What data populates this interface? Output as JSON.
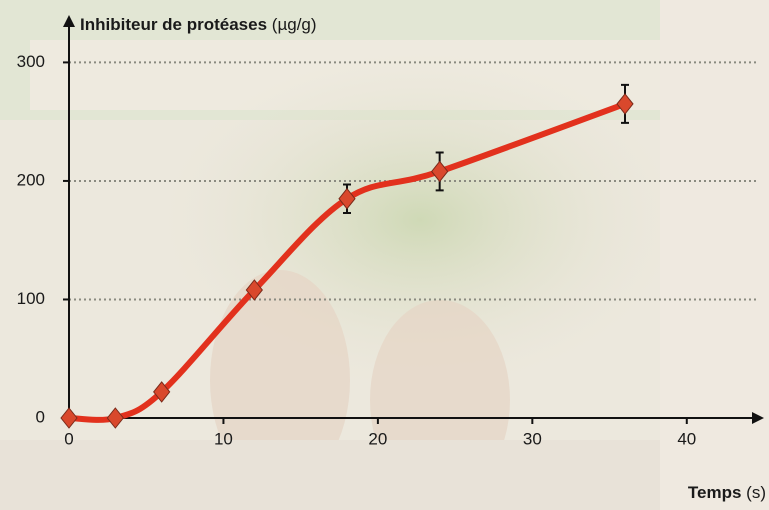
{
  "chart_data": {
    "type": "line",
    "ylabel": "Inhibiteur de protéases",
    "yunit": "(µg/g)",
    "xlabel": "Temps",
    "xunit": "(s)",
    "series": [
      {
        "name": "Inhibiteur de protéases",
        "color": "#e2311d",
        "marker_color": "#d9482c",
        "x": [
          0,
          3,
          6,
          12,
          18,
          24,
          36
        ],
        "values": [
          0,
          0,
          22,
          108,
          185,
          208,
          265
        ],
        "errors": [
          null,
          null,
          null,
          null,
          12,
          16,
          16
        ]
      }
    ],
    "xlim": [
      0,
      45
    ],
    "xticks": [
      0,
      10,
      20,
      30,
      40
    ],
    "ylim": [
      0,
      340
    ],
    "yticks": [
      0,
      100,
      200,
      300
    ],
    "grid": true
  }
}
